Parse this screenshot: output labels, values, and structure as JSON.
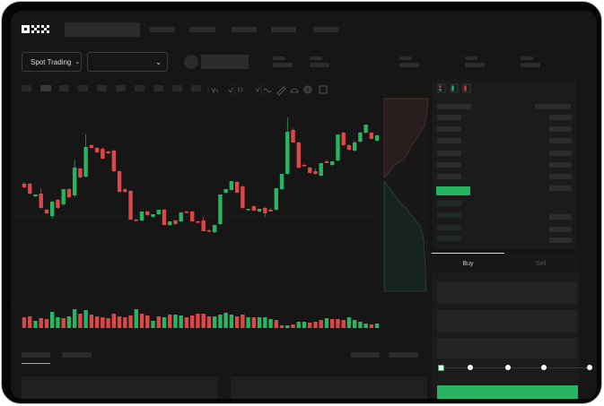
{
  "header": {
    "logo": "OKX",
    "market_type_button": "Spot Trading"
  },
  "colors": {
    "up": "#27b561",
    "down": "#dc4848",
    "background": "#161616",
    "placeholder": "#2c2c2c"
  },
  "icons": [
    "chevron-down-icon",
    "line-tool-icon",
    "pencil-icon",
    "magnet-icon",
    "target-icon",
    "expand-icon",
    "orderbook-both-icon",
    "orderbook-bids-icon",
    "orderbook-asks-icon"
  ],
  "order_form": {
    "tabs": [
      {
        "label": "Buy",
        "active": true
      },
      {
        "label": "Sell",
        "active": false
      }
    ],
    "slider_value_percent": 0,
    "slider_stops": 5
  },
  "chart_data": {
    "type": "candlestick",
    "candles": [
      [
        97,
        99,
        92,
        93
      ],
      [
        97,
        98,
        85,
        86
      ],
      [
        83,
        85,
        82,
        85
      ],
      [
        86,
        92,
        69,
        70
      ],
      [
        68,
        69,
        63,
        64
      ],
      [
        61,
        78,
        58,
        77
      ],
      [
        79,
        80,
        69,
        70
      ],
      [
        74,
        91,
        72,
        91
      ],
      [
        91,
        92,
        81,
        82
      ],
      [
        84,
        124,
        82,
        115
      ],
      [
        114,
        115,
        103,
        104
      ],
      [
        105,
        152,
        104,
        138
      ],
      [
        140,
        141,
        136,
        137
      ],
      [
        137,
        138,
        131,
        132
      ],
      [
        136,
        138,
        124,
        125
      ],
      [
        133,
        134,
        130,
        131
      ],
      [
        134,
        135,
        110,
        111
      ],
      [
        111,
        112,
        87,
        88
      ],
      [
        91,
        92,
        87,
        88
      ],
      [
        89,
        90,
        57,
        57
      ],
      [
        57,
        58,
        55,
        56
      ],
      [
        56,
        66,
        55,
        66
      ],
      [
        66,
        67,
        61,
        62
      ],
      [
        60,
        63,
        59,
        63
      ],
      [
        63,
        68,
        62,
        68
      ],
      [
        68,
        69,
        51,
        51
      ],
      [
        51,
        55,
        50,
        55
      ],
      [
        56,
        57,
        51,
        52
      ],
      [
        55,
        65,
        54,
        65
      ],
      [
        66,
        67,
        64,
        65
      ],
      [
        66,
        67,
        55,
        55
      ],
      [
        55,
        56,
        53,
        54
      ],
      [
        56,
        60,
        44,
        44
      ],
      [
        45,
        46,
        43,
        44
      ],
      [
        43,
        51,
        42,
        51
      ],
      [
        52,
        85,
        51,
        85
      ],
      [
        87,
        91,
        86,
        91
      ],
      [
        90,
        100,
        89,
        100
      ],
      [
        99,
        100,
        87,
        87
      ],
      [
        94,
        95,
        69,
        70
      ],
      [
        68,
        69,
        67,
        69
      ],
      [
        72,
        73,
        67,
        67
      ],
      [
        66,
        69,
        65,
        69
      ],
      [
        70,
        71,
        60,
        64
      ],
      [
        68,
        70,
        66,
        66
      ],
      [
        68,
        92,
        67,
        92
      ],
      [
        91,
        108,
        90,
        108
      ],
      [
        108,
        171,
        107,
        155
      ],
      [
        157,
        159,
        143,
        143
      ],
      [
        143,
        144,
        114,
        115
      ],
      [
        118,
        119,
        116,
        117
      ],
      [
        115,
        116,
        109,
        109
      ],
      [
        111,
        114,
        107,
        108
      ],
      [
        106,
        120,
        105,
        120
      ],
      [
        122,
        124,
        120,
        120
      ],
      [
        118,
        122,
        117,
        122
      ],
      [
        123,
        152,
        122,
        152
      ],
      [
        154,
        155,
        139,
        140
      ],
      [
        140,
        141,
        134,
        135
      ],
      [
        134,
        145,
        133,
        143
      ],
      [
        144,
        155,
        143,
        154
      ],
      [
        154,
        163,
        153,
        163
      ],
      [
        154,
        155,
        147,
        147
      ],
      [
        145,
        152,
        144,
        151
      ]
    ],
    "volume": [
      12,
      13,
      8,
      11,
      10,
      18,
      12,
      11,
      13,
      21,
      16,
      20,
      15,
      13,
      12,
      11,
      16,
      13,
      12,
      14,
      21,
      16,
      14,
      8,
      13,
      12,
      15,
      15,
      14,
      12,
      14,
      16,
      16,
      13,
      13,
      15,
      17,
      15,
      13,
      15,
      12,
      12,
      12,
      12,
      10,
      9,
      3,
      3,
      4,
      7,
      7,
      6,
      7,
      9,
      11,
      10,
      10,
      9,
      12,
      9,
      7,
      5,
      4,
      5
    ],
    "volume_up": [
      false,
      false,
      true,
      false,
      false,
      true,
      true,
      false,
      true,
      true,
      false,
      true,
      false,
      false,
      false,
      false,
      false,
      false,
      false,
      false,
      true,
      false,
      false,
      true,
      false,
      true,
      false,
      true,
      true,
      false,
      false,
      false,
      false,
      false,
      true,
      true,
      true,
      true,
      false,
      false,
      true,
      false,
      true,
      true,
      true,
      false,
      false,
      true,
      false,
      true,
      true,
      false,
      false,
      false,
      true,
      false,
      false,
      false,
      true,
      true,
      true,
      true,
      false,
      true
    ],
    "depth": {
      "asks_label": "",
      "bids_label": ""
    }
  }
}
